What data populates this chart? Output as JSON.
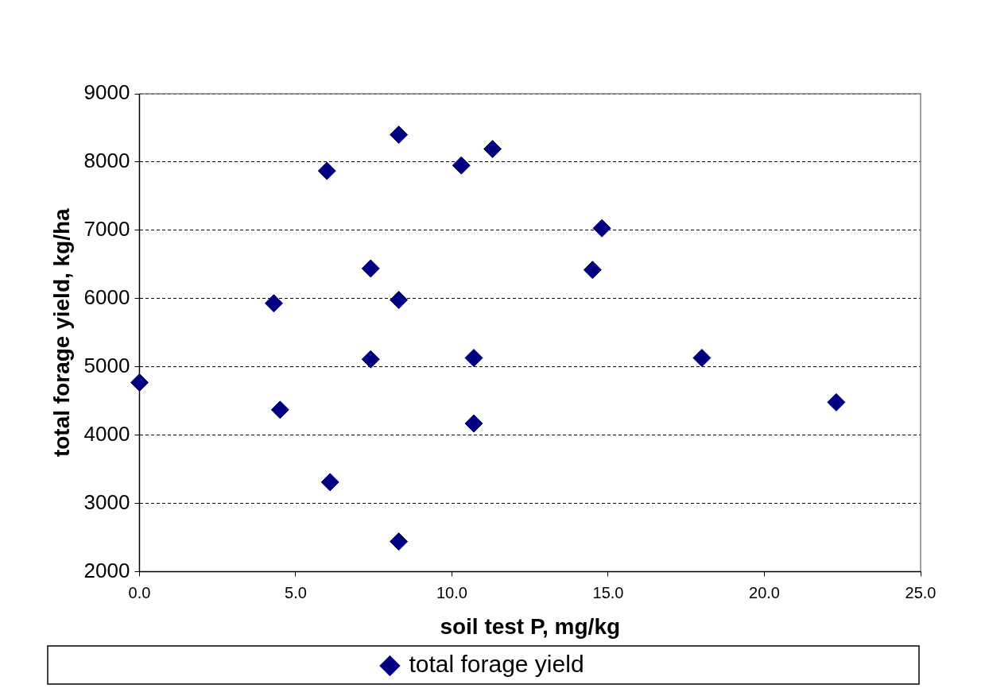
{
  "chart_data": {
    "type": "scatter",
    "xlabel": "soil test P, mg/kg",
    "ylabel": "total forage yield, kg/ha",
    "xlim": [
      0,
      25
    ],
    "xticks": [
      {
        "value": 0,
        "label": "0.0"
      },
      {
        "value": 5,
        "label": "5.0"
      },
      {
        "value": 10,
        "label": "10.0"
      },
      {
        "value": 15,
        "label": "15.0"
      },
      {
        "value": 20,
        "label": "20.0"
      },
      {
        "value": 25,
        "label": "25.0"
      }
    ],
    "ylim": [
      2000,
      9000
    ],
    "yticks": [
      2000,
      3000,
      4000,
      5000,
      6000,
      7000,
      8000,
      9000
    ],
    "grid": "y",
    "legend": "bottom",
    "marker": "diamond",
    "series": [
      {
        "name": "total forage yield",
        "color": "#000080",
        "x": [
          0,
          4.3,
          4.5,
          6.1,
          6.0,
          8.3,
          7.4,
          8.3,
          7.4,
          8.3,
          10.3,
          11.3,
          10.7,
          10.7,
          14.8,
          14.5,
          18.0,
          22.3
        ],
        "values": [
          4770,
          5930,
          4370,
          3310,
          7870,
          8400,
          6440,
          5980,
          5110,
          2440,
          7950,
          8190,
          5130,
          4170,
          7030,
          6420,
          5130,
          4480
        ]
      }
    ]
  }
}
